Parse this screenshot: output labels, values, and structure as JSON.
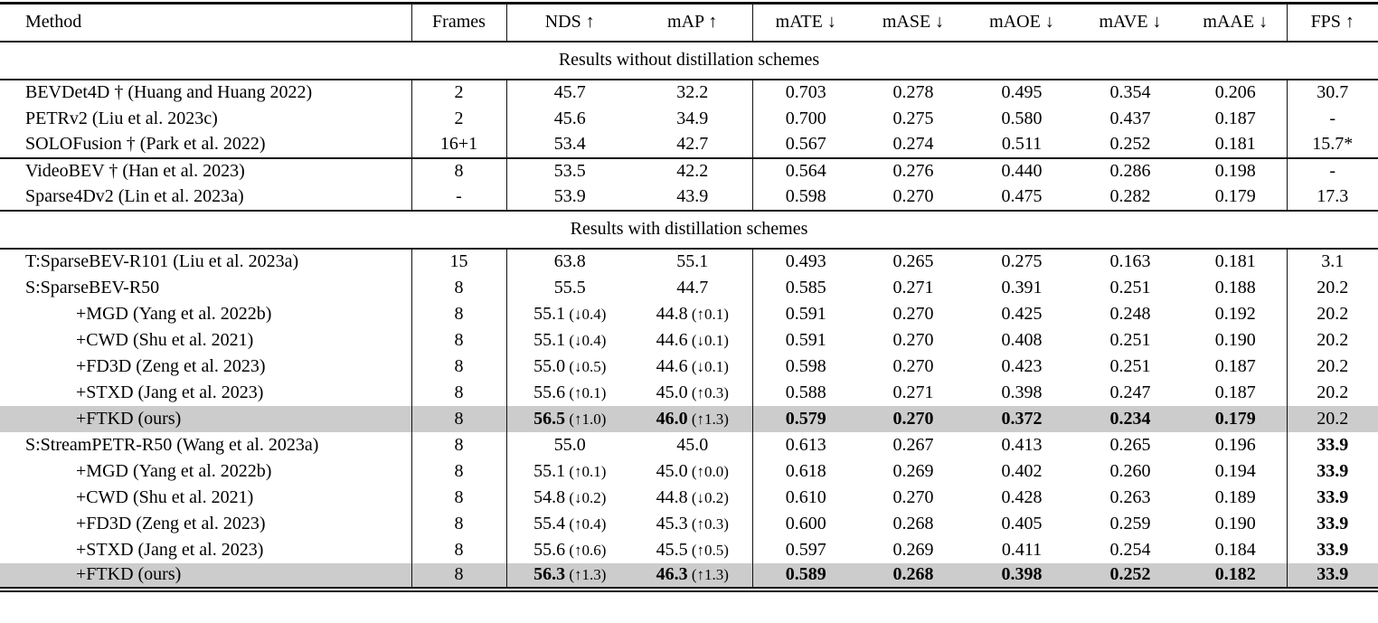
{
  "style": {
    "highlight_color": "#cccccc",
    "rule_color": "#111111",
    "background": "#ffffff"
  },
  "table": {
    "columns": [
      "Method",
      "Frames",
      "NDS ↑",
      "mAP ↑",
      "mATE ↓",
      "mASE ↓",
      "mAOE ↓",
      "mAVE ↓",
      "mAAE ↓",
      "FPS ↑"
    ],
    "body": [
      {
        "type": "section",
        "label": "Results without distillation schemes",
        "bt": false
      },
      {
        "type": "row",
        "bt": true,
        "hl": false,
        "ind": false,
        "method": "BEVDet4D † (Huang and Huang 2022)",
        "cells": [
          {
            "v": "2"
          },
          {
            "v": "45.7"
          },
          {
            "v": "32.2"
          },
          {
            "v": "0.703"
          },
          {
            "v": "0.278"
          },
          {
            "v": "0.495"
          },
          {
            "v": "0.354"
          },
          {
            "v": "0.206"
          },
          {
            "v": "30.7"
          }
        ]
      },
      {
        "type": "row",
        "bt": false,
        "hl": false,
        "ind": false,
        "method": "PETRv2 (Liu et al. 2023c)",
        "cells": [
          {
            "v": "2"
          },
          {
            "v": "45.6"
          },
          {
            "v": "34.9"
          },
          {
            "v": "0.700"
          },
          {
            "v": "0.275"
          },
          {
            "v": "0.580"
          },
          {
            "v": "0.437"
          },
          {
            "v": "0.187"
          },
          {
            "v": "-"
          }
        ]
      },
      {
        "type": "row",
        "bt": false,
        "hl": false,
        "ind": false,
        "method": "SOLOFusion † (Park et al. 2022)",
        "cells": [
          {
            "v": "16+1"
          },
          {
            "v": "53.4"
          },
          {
            "v": "42.7"
          },
          {
            "v": "0.567"
          },
          {
            "v": "0.274"
          },
          {
            "v": "0.511"
          },
          {
            "v": "0.252"
          },
          {
            "v": "0.181"
          },
          {
            "v": "15.7*"
          }
        ]
      },
      {
        "type": "row",
        "bt": true,
        "hl": false,
        "ind": false,
        "method": "VideoBEV † (Han et al. 2023)",
        "cells": [
          {
            "v": "8"
          },
          {
            "v": "53.5"
          },
          {
            "v": "42.2"
          },
          {
            "v": "0.564"
          },
          {
            "v": "0.276"
          },
          {
            "v": "0.440"
          },
          {
            "v": "0.286"
          },
          {
            "v": "0.198"
          },
          {
            "v": "-"
          }
        ]
      },
      {
        "type": "row",
        "bt": false,
        "hl": false,
        "ind": false,
        "method": "Sparse4Dv2 (Lin et al. 2023a)",
        "cells": [
          {
            "v": "-"
          },
          {
            "v": "53.9"
          },
          {
            "v": "43.9"
          },
          {
            "v": "0.598"
          },
          {
            "v": "0.270"
          },
          {
            "v": "0.475"
          },
          {
            "v": "0.282"
          },
          {
            "v": "0.179"
          },
          {
            "v": "17.3"
          }
        ]
      },
      {
        "type": "section",
        "label": "Results with distillation schemes",
        "bt": true
      },
      {
        "type": "row",
        "bt": true,
        "hl": false,
        "ind": false,
        "method": "T:SparseBEV-R101 (Liu et al. 2023a)",
        "cells": [
          {
            "v": "15"
          },
          {
            "v": "63.8"
          },
          {
            "v": "55.1"
          },
          {
            "v": "0.493"
          },
          {
            "v": "0.265"
          },
          {
            "v": "0.275"
          },
          {
            "v": "0.163"
          },
          {
            "v": "0.181"
          },
          {
            "v": "3.1"
          }
        ]
      },
      {
        "type": "row",
        "bt": false,
        "hl": false,
        "ind": false,
        "method": "S:SparseBEV-R50",
        "cells": [
          {
            "v": "8"
          },
          {
            "v": "55.5"
          },
          {
            "v": "44.7"
          },
          {
            "v": "0.585"
          },
          {
            "v": "0.271"
          },
          {
            "v": "0.391"
          },
          {
            "v": "0.251"
          },
          {
            "v": "0.188"
          },
          {
            "v": "20.2"
          }
        ]
      },
      {
        "type": "row",
        "bt": false,
        "hl": false,
        "ind": true,
        "method": "+MGD (Yang et al. 2022b)",
        "cells": [
          {
            "v": "8"
          },
          {
            "v": "55.1",
            "d": "(↓0.4)"
          },
          {
            "v": "44.8",
            "d": "(↑0.1)"
          },
          {
            "v": "0.591"
          },
          {
            "v": "0.270"
          },
          {
            "v": "0.425"
          },
          {
            "v": "0.248"
          },
          {
            "v": "0.192"
          },
          {
            "v": "20.2"
          }
        ]
      },
      {
        "type": "row",
        "bt": false,
        "hl": false,
        "ind": true,
        "method": "+CWD (Shu et al. 2021)",
        "cells": [
          {
            "v": "8"
          },
          {
            "v": "55.1",
            "d": "(↓0.4)"
          },
          {
            "v": "44.6",
            "d": "(↓0.1)"
          },
          {
            "v": "0.591"
          },
          {
            "v": "0.270"
          },
          {
            "v": "0.408"
          },
          {
            "v": "0.251"
          },
          {
            "v": "0.190"
          },
          {
            "v": "20.2"
          }
        ]
      },
      {
        "type": "row",
        "bt": false,
        "hl": false,
        "ind": true,
        "method": "+FD3D (Zeng et al. 2023)",
        "cells": [
          {
            "v": "8"
          },
          {
            "v": "55.0",
            "d": "(↓0.5)"
          },
          {
            "v": "44.6",
            "d": "(↓0.1)"
          },
          {
            "v": "0.598"
          },
          {
            "v": "0.270"
          },
          {
            "v": "0.423"
          },
          {
            "v": "0.251"
          },
          {
            "v": "0.187"
          },
          {
            "v": "20.2"
          }
        ]
      },
      {
        "type": "row",
        "bt": false,
        "hl": false,
        "ind": true,
        "method": "+STXD (Jang et al. 2023)",
        "cells": [
          {
            "v": "8"
          },
          {
            "v": "55.6",
            "d": "(↑0.1)"
          },
          {
            "v": "45.0",
            "d": "(↑0.3)"
          },
          {
            "v": "0.588"
          },
          {
            "v": "0.271"
          },
          {
            "v": "0.398"
          },
          {
            "v": "0.247"
          },
          {
            "v": "0.187"
          },
          {
            "v": "20.2"
          }
        ]
      },
      {
        "type": "row",
        "bt": false,
        "hl": true,
        "ind": true,
        "method": "+FTKD (ours)",
        "cells": [
          {
            "v": "8"
          },
          {
            "v": "56.5",
            "d": "(↑1.0)",
            "b": true
          },
          {
            "v": "46.0",
            "d": "(↑1.3)",
            "b": true
          },
          {
            "v": "0.579",
            "b": true
          },
          {
            "v": "0.270",
            "b": true
          },
          {
            "v": "0.372",
            "b": true
          },
          {
            "v": "0.234",
            "b": true
          },
          {
            "v": "0.179",
            "b": true
          },
          {
            "v": "20.2"
          }
        ]
      },
      {
        "type": "row",
        "bt": false,
        "hl": false,
        "ind": false,
        "method": "S:StreamPETR-R50 (Wang et al. 2023a)",
        "cells": [
          {
            "v": "8"
          },
          {
            "v": "55.0"
          },
          {
            "v": "45.0"
          },
          {
            "v": "0.613"
          },
          {
            "v": "0.267"
          },
          {
            "v": "0.413"
          },
          {
            "v": "0.265"
          },
          {
            "v": "0.196"
          },
          {
            "v": "33.9",
            "b": true
          }
        ]
      },
      {
        "type": "row",
        "bt": false,
        "hl": false,
        "ind": true,
        "method": "+MGD (Yang et al. 2022b)",
        "cells": [
          {
            "v": "8"
          },
          {
            "v": "55.1",
            "d": "(↑0.1)"
          },
          {
            "v": "45.0",
            "d": "(↑0.0)"
          },
          {
            "v": "0.618"
          },
          {
            "v": "0.269"
          },
          {
            "v": "0.402"
          },
          {
            "v": "0.260"
          },
          {
            "v": "0.194"
          },
          {
            "v": "33.9",
            "b": true
          }
        ]
      },
      {
        "type": "row",
        "bt": false,
        "hl": false,
        "ind": true,
        "method": "+CWD (Shu et al. 2021)",
        "cells": [
          {
            "v": "8"
          },
          {
            "v": "54.8",
            "d": "(↓0.2)"
          },
          {
            "v": "44.8",
            "d": "(↓0.2)"
          },
          {
            "v": "0.610"
          },
          {
            "v": "0.270"
          },
          {
            "v": "0.428"
          },
          {
            "v": "0.263"
          },
          {
            "v": "0.189"
          },
          {
            "v": "33.9",
            "b": true
          }
        ]
      },
      {
        "type": "row",
        "bt": false,
        "hl": false,
        "ind": true,
        "method": "+FD3D (Zeng et al. 2023)",
        "cells": [
          {
            "v": "8"
          },
          {
            "v": "55.4",
            "d": "(↑0.4)"
          },
          {
            "v": "45.3",
            "d": "(↑0.3)"
          },
          {
            "v": "0.600"
          },
          {
            "v": "0.268"
          },
          {
            "v": "0.405"
          },
          {
            "v": "0.259"
          },
          {
            "v": "0.190"
          },
          {
            "v": "33.9",
            "b": true
          }
        ]
      },
      {
        "type": "row",
        "bt": false,
        "hl": false,
        "ind": true,
        "method": "+STXD (Jang et al. 2023)",
        "cells": [
          {
            "v": "8"
          },
          {
            "v": "55.6",
            "d": "(↑0.6)"
          },
          {
            "v": "45.5",
            "d": "(↑0.5)"
          },
          {
            "v": "0.597"
          },
          {
            "v": "0.269"
          },
          {
            "v": "0.411"
          },
          {
            "v": "0.254"
          },
          {
            "v": "0.184"
          },
          {
            "v": "33.9",
            "b": true
          }
        ]
      },
      {
        "type": "row",
        "bt": false,
        "hl": true,
        "ind": true,
        "method": "+FTKD (ours)",
        "cells": [
          {
            "v": "8"
          },
          {
            "v": "56.3",
            "d": "(↑1.3)",
            "b": true
          },
          {
            "v": "46.3",
            "d": "(↑1.3)",
            "b": true
          },
          {
            "v": "0.589",
            "b": true
          },
          {
            "v": "0.268",
            "b": true
          },
          {
            "v": "0.398",
            "b": true
          },
          {
            "v": "0.252",
            "b": true
          },
          {
            "v": "0.182",
            "b": true
          },
          {
            "v": "33.9",
            "b": true
          }
        ]
      }
    ]
  }
}
